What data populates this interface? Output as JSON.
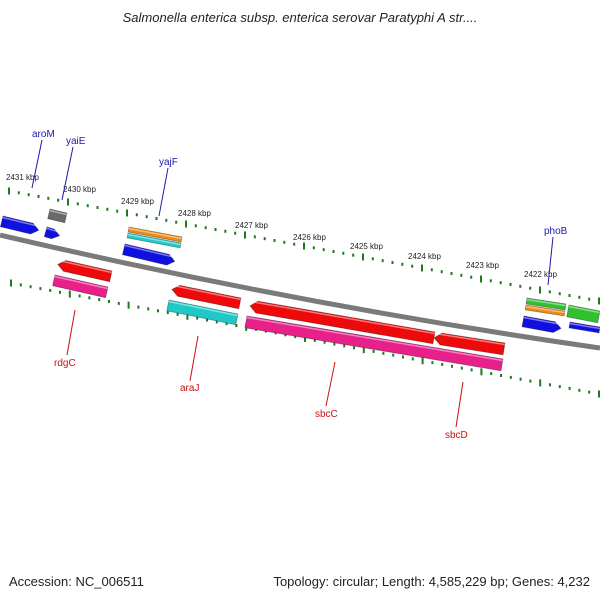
{
  "title": "Salmonella enterica subsp. enterica serovar Paratyphi A str....",
  "accession": "Accession: NC_006511",
  "topology": "Topology: circular; Length: 4,585,229 bp; Genes: 4,232",
  "ticks": [
    {
      "label": "2431 kbp",
      "kbp": 2431
    },
    {
      "label": "2430 kbp",
      "kbp": 2430
    },
    {
      "label": "2429 kbp",
      "kbp": 2429
    },
    {
      "label": "2428 kbp",
      "kbp": 2428
    },
    {
      "label": "2427 kbp",
      "kbp": 2427
    },
    {
      "label": "2426 kbp",
      "kbp": 2426
    },
    {
      "label": "2425 kbp",
      "kbp": 2425
    },
    {
      "label": "2424 kbp",
      "kbp": 2424
    },
    {
      "label": "2423 kbp",
      "kbp": 2423
    },
    {
      "label": "2422 kbp",
      "kbp": 2422
    }
  ],
  "gene_labels": [
    {
      "name": "aroM",
      "strand": "forward",
      "color": "#1a1aa8"
    },
    {
      "name": "yaiE",
      "strand": "forward",
      "color": "#1a1aa8"
    },
    {
      "name": "yajF",
      "strand": "forward",
      "color": "#1a1aa8"
    },
    {
      "name": "phoB",
      "strand": "forward",
      "color": "#1a1aa8"
    },
    {
      "name": "rdgC",
      "strand": "reverse",
      "color": "#cc1111"
    },
    {
      "name": "araJ",
      "strand": "reverse",
      "color": "#cc1111"
    },
    {
      "name": "sbcC",
      "strand": "reverse",
      "color": "#cc1111"
    },
    {
      "name": "sbcD",
      "strand": "reverse",
      "color": "#cc1111"
    }
  ],
  "colors": {
    "backbone": "#7a7a7a",
    "tick": "#1f7a1f",
    "blue": "#1010e0",
    "gray": "#6a6a6a",
    "orange": "#f08a10",
    "cyan": "#20c8c8",
    "red": "#ee0a0a",
    "magenta": "#e8208a",
    "green": "#30c030"
  }
}
